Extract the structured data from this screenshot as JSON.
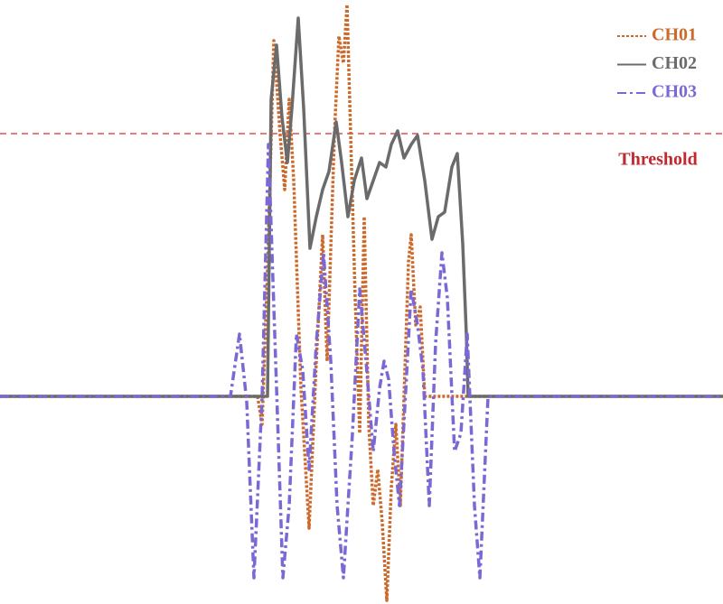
{
  "chart_data": {
    "type": "line",
    "xlim": [
      0,
      800
    ],
    "ylim": [
      -230,
      439
    ],
    "legend": "upper right",
    "threshold": {
      "label": "Threshold",
      "value": 291,
      "color": "#e0504f",
      "label_color": "#c0282d"
    },
    "series": [
      {
        "name": "CH01",
        "color": "#cc6a2c",
        "linestyle": "dotted",
        "x": [
          0,
          285,
          290,
          296,
          303,
          310,
          315,
          320,
          325,
          333,
          342,
          350,
          357,
          362,
          370,
          375,
          380,
          384,
          388,
          393,
          398,
          403,
          408,
          413,
          418,
          423,
          428,
          433,
          438,
          443,
          448,
          452,
          455,
          460,
          465,
          470,
          800
        ],
        "values": [
          0,
          0,
          -31,
          139,
          394,
          289,
          229,
          329,
          239,
          9,
          -146,
          39,
          179,
          39,
          289,
          399,
          369,
          434,
          289,
          109,
          -41,
          199,
          -31,
          -121,
          -81,
          -141,
          -226,
          -101,
          -31,
          -121,
          29,
          149,
          179,
          79,
          99,
          0,
          0
        ]
      },
      {
        "name": "CH02",
        "color": "#6b6b6b",
        "linestyle": "solid",
        "x": [
          0,
          292,
          296,
          300,
          306,
          312,
          318,
          323,
          330,
          336,
          343,
          350,
          357,
          364,
          372,
          378,
          385,
          392,
          400,
          406,
          413,
          420,
          427,
          433,
          440,
          447,
          455,
          462,
          470,
          478,
          485,
          492,
          500,
          506,
          512,
          516,
          518,
          800
        ],
        "values": [
          0,
          0,
          0,
          329,
          389,
          309,
          259,
          319,
          419,
          319,
          164,
          199,
          229,
          249,
          304,
          259,
          199,
          239,
          264,
          219,
          239,
          259,
          254,
          279,
          294,
          264,
          279,
          289,
          239,
          174,
          199,
          204,
          254,
          269,
          169,
          69,
          0,
          0
        ]
      },
      {
        "name": "CH03",
        "color": "#7b68d6",
        "linestyle": "dashdot",
        "x": [
          0,
          255,
          265,
          273,
          281,
          290,
          297,
          305,
          313,
          320,
          328,
          335,
          342,
          350,
          358,
          366,
          373,
          380,
          390,
          398,
          405,
          413,
          420,
          425,
          430,
          436,
          442,
          448,
          455,
          462,
          468,
          475,
          482,
          489,
          495,
          503,
          510,
          517,
          525,
          531,
          540,
          800
        ],
        "values": [
          0,
          0,
          69,
          -6,
          -201,
          -1,
          279,
          39,
          -201,
          -121,
          69,
          29,
          -81,
          59,
          159,
          39,
          -121,
          -201,
          -41,
          119,
          39,
          -61,
          9,
          39,
          19,
          -61,
          -121,
          -11,
          119,
          79,
          29,
          -121,
          59,
          159,
          109,
          -61,
          -41,
          69,
          -121,
          -201,
          0,
          0
        ]
      }
    ]
  }
}
